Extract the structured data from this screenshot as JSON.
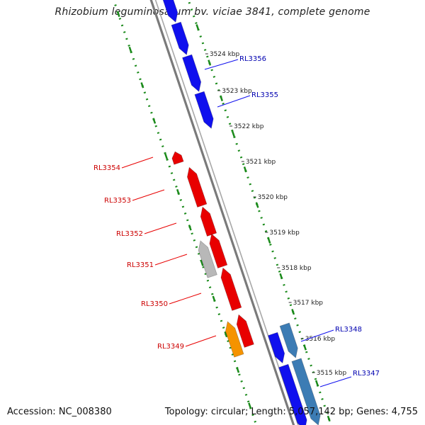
{
  "title": "Rhizobium leguminosarum bv. viciae 3841, complete genome",
  "footer": {
    "accession": "Accession: NC_008380",
    "stats": "Topology: circular; Length: 5,057,142 bp; Genes: 4,755"
  },
  "colors": {
    "forward_gene": "#1010ee",
    "forward_gene_alt": "#3c7cb4",
    "reverse_gene": "#e80000",
    "reverse_gene_alt": "#b8b8b8",
    "reverse_gene_orange": "#f59300",
    "backbone": "#7a7a7a",
    "dots": "#1a8a1a",
    "forward_label": "#0000b0",
    "reverse_label": "#cc0000"
  },
  "scale": {
    "unit": "kbp",
    "ticks": [
      {
        "label": "3524 kbp"
      },
      {
        "label": "3523 kbp"
      },
      {
        "label": "3522 kbp"
      },
      {
        "label": "3521 kbp"
      },
      {
        "label": "3520 kbp"
      },
      {
        "label": "3519 kbp"
      },
      {
        "label": "3518 kbp"
      },
      {
        "label": "3517 kbp"
      },
      {
        "label": "3516 kbp"
      },
      {
        "label": "3515 kbp"
      }
    ]
  },
  "genes": {
    "forward": [
      {
        "name": ""
      },
      {
        "name": ""
      },
      {
        "name": "RL3356"
      },
      {
        "name": "RL3355"
      },
      {
        "name": "RL3348"
      },
      {
        "name": "RL3347"
      },
      {
        "name": ""
      }
    ],
    "reverse": [
      {
        "name": "RL3354"
      },
      {
        "name": "RL3353"
      },
      {
        "name": "RL3352"
      },
      {
        "name": "RL3351"
      },
      {
        "name": "RL3350"
      },
      {
        "name": "RL3349"
      },
      {
        "name": ""
      }
    ]
  }
}
